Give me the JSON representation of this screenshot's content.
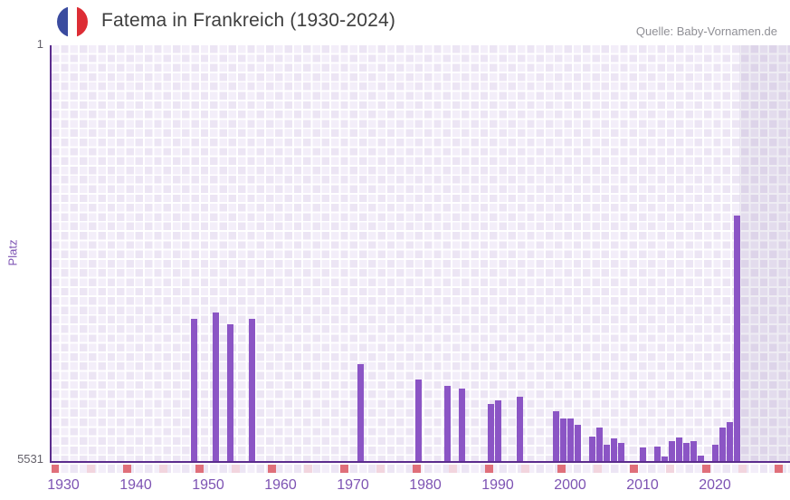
{
  "header": {
    "title": "Fatema in Frankreich (1930-2024)",
    "source": "Quelle: Baby-Vornamen.de",
    "flag_icon": "france-flag"
  },
  "y_axis": {
    "title": "Platz",
    "top_label": "1",
    "bottom_label": "5531"
  },
  "chart_data": {
    "type": "bar",
    "title": "Fatema in Frankreich (1930-2024)",
    "source": "Quelle: Baby-Vornamen.de",
    "xlabel": "",
    "ylabel": "Platz",
    "x_range": [
      1930,
      2024
    ],
    "x_tick_labels": [
      "1930",
      "1940",
      "1950",
      "1960",
      "1970",
      "1980",
      "1990",
      "2000",
      "2010",
      "2020"
    ],
    "y_axis": {
      "min": 1,
      "max": 5531,
      "inverted": true,
      "top_tick": "1",
      "bottom_tick": "5531"
    },
    "legend": "none",
    "background": "checkered lavender grid, shaded no-data band after last bar",
    "no_data_region_from_year": 2023.5,
    "series": [
      {
        "name": "Platz",
        "points": [
          {
            "year": 1948,
            "rank": 3640
          },
          {
            "year": 1951,
            "rank": 3560
          },
          {
            "year": 1953,
            "rank": 3710
          },
          {
            "year": 1956,
            "rank": 3640
          },
          {
            "year": 1971,
            "rank": 4240
          },
          {
            "year": 1979,
            "rank": 4445
          },
          {
            "year": 1983,
            "rank": 4530
          },
          {
            "year": 1985,
            "rank": 4565
          },
          {
            "year": 1989,
            "rank": 4770
          },
          {
            "year": 1990,
            "rank": 4720
          },
          {
            "year": 1993,
            "rank": 4680
          },
          {
            "year": 1998,
            "rank": 4870
          },
          {
            "year": 1999,
            "rank": 4970
          },
          {
            "year": 2000,
            "rank": 4965
          },
          {
            "year": 2001,
            "rank": 5050
          },
          {
            "year": 2003,
            "rank": 5210
          },
          {
            "year": 2004,
            "rank": 5080
          },
          {
            "year": 2005,
            "rank": 5320
          },
          {
            "year": 2006,
            "rank": 5230
          },
          {
            "year": 2007,
            "rank": 5285
          },
          {
            "year": 2010,
            "rank": 5350
          },
          {
            "year": 2012,
            "rank": 5340
          },
          {
            "year": 2013,
            "rank": 5475
          },
          {
            "year": 2014,
            "rank": 5260
          },
          {
            "year": 2015,
            "rank": 5220
          },
          {
            "year": 2016,
            "rank": 5290
          },
          {
            "year": 2017,
            "rank": 5260
          },
          {
            "year": 2018,
            "rank": 5460
          },
          {
            "year": 2020,
            "rank": 5320
          },
          {
            "year": 2021,
            "rank": 5090
          },
          {
            "year": 2022,
            "rank": 5010
          },
          {
            "year": 2023,
            "rank": 2260
          }
        ]
      }
    ],
    "colors": {
      "bar": "#8b55c5",
      "axis": "#5b2c8d",
      "tick_text": "#7d53b3",
      "rank_text": "#636069",
      "title_text": "#3e3e3e",
      "source_text": "#8f8f95",
      "plot_cell": "#ece5f4",
      "plot_cell_alt": "#f3eef9",
      "future_overlay": "rgba(90,70,135,0.10)",
      "marker_red": "#e06f7a",
      "marker_pink": "#f2d5de",
      "flag_blue": "#3a4b9f",
      "flag_red": "#dd2d35"
    }
  }
}
